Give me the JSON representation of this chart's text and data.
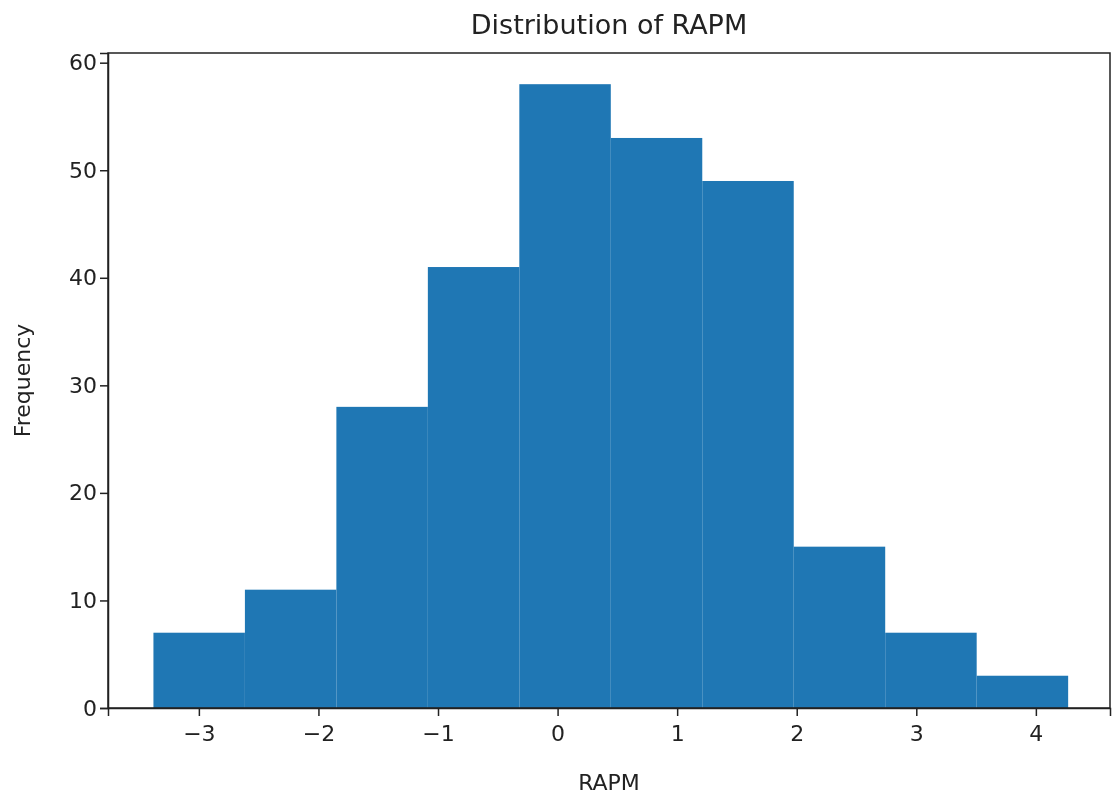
{
  "chart_data": {
    "type": "histogram",
    "title": "Distribution of RAPM",
    "xlabel": "RAPM",
    "ylabel": "Frequency",
    "bins": [
      -3.38,
      -2.615,
      -1.85,
      -1.085,
      -0.32,
      0.445,
      1.21,
      1.975,
      2.74,
      3.505,
      4.27
    ],
    "values": [
      7,
      11,
      28,
      41,
      58,
      53,
      49,
      15,
      7,
      3
    ],
    "color": "#1f77b4",
    "xlim": [
      -3.76,
      4.62
    ],
    "xticks": [
      {
        "value": -3,
        "label": "−3"
      },
      {
        "value": -2,
        "label": "−2"
      },
      {
        "value": -1,
        "label": "−1"
      },
      0,
      1,
      2,
      3,
      4
    ],
    "ylim": [
      0,
      60.9
    ],
    "yticks": [
      0,
      10,
      20,
      30,
      40,
      50,
      60
    ],
    "grid": false
  }
}
